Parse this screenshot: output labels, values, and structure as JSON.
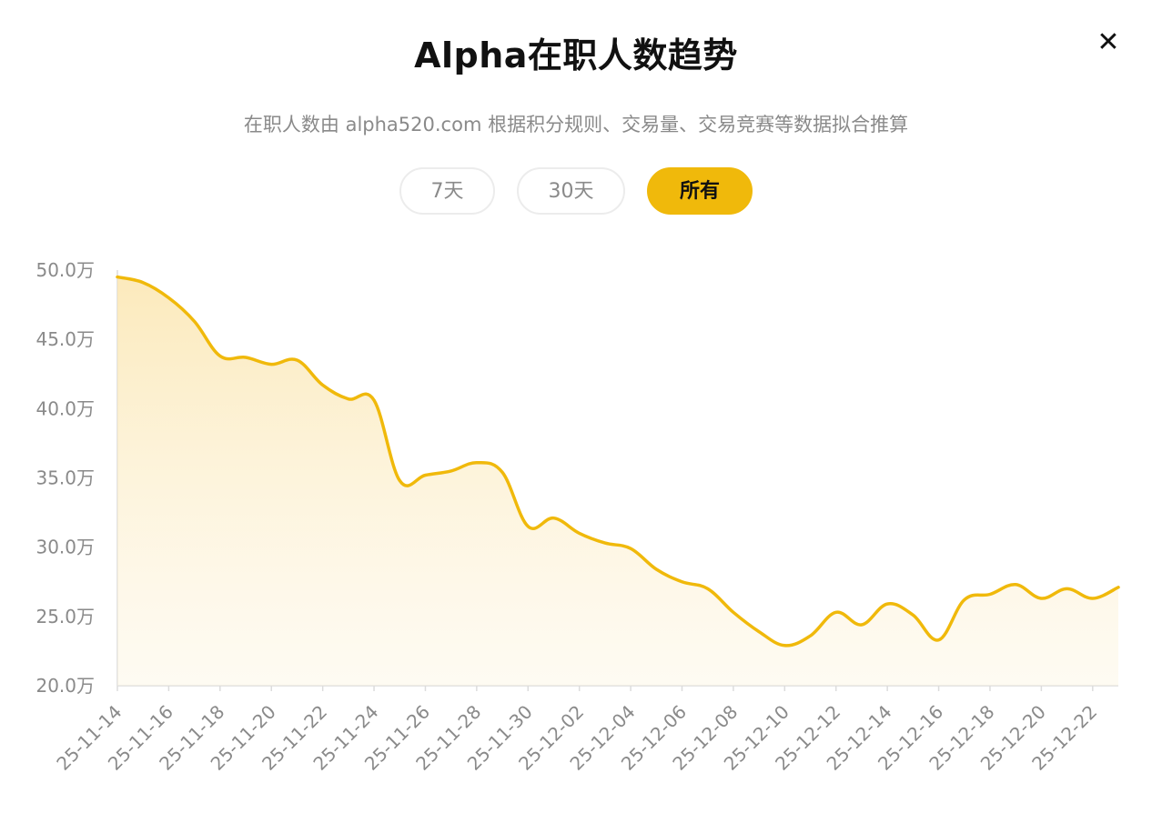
{
  "header": {
    "title": "Alpha在职人数趋势",
    "close_label": "✕",
    "subtitle": "在职人数由 alpha520.com 根据积分规则、交易量、交易竞赛等数据拟合推算"
  },
  "range_tabs": [
    {
      "label": "7天",
      "active": false
    },
    {
      "label": "30天",
      "active": false
    },
    {
      "label": "所有",
      "active": true
    }
  ],
  "colors": {
    "accent": "#f0b90b",
    "line": "#f0b90b",
    "area_top": "#fbe6b0",
    "axis_text": "#8a8a8a"
  },
  "chart_data": {
    "type": "area",
    "title": "",
    "xlabel": "",
    "ylabel": "",
    "ylim": [
      200000,
      500000
    ],
    "y_ticks": [
      {
        "value": 500000,
        "label": "50.0万"
      },
      {
        "value": 450000,
        "label": "45.0万"
      },
      {
        "value": 400000,
        "label": "40.0万"
      },
      {
        "value": 350000,
        "label": "35.0万"
      },
      {
        "value": 300000,
        "label": "30.0万"
      },
      {
        "value": 250000,
        "label": "25.0万"
      },
      {
        "value": 200000,
        "label": "20.0万"
      }
    ],
    "x_tick_labels": [
      "25-11-14",
      "25-11-16",
      "25-11-18",
      "25-11-20",
      "25-11-22",
      "25-11-24",
      "25-11-26",
      "25-11-28",
      "25-11-30",
      "25-12-02",
      "25-12-04",
      "25-12-06",
      "25-12-08",
      "25-12-10",
      "25-12-12",
      "25-12-14",
      "25-12-16",
      "25-12-18",
      "25-12-20",
      "25-12-22"
    ],
    "series": [
      {
        "dates": [
          "2025-11-14",
          "2025-11-15",
          "2025-11-16",
          "2025-11-17",
          "2025-11-18",
          "2025-11-19",
          "2025-11-20",
          "2025-11-21",
          "2025-11-22",
          "2025-11-23",
          "2025-11-24",
          "2025-11-25",
          "2025-11-26",
          "2025-11-27",
          "2025-11-28",
          "2025-11-29",
          "2025-11-30",
          "2025-12-01",
          "2025-12-02",
          "2025-12-03",
          "2025-12-04",
          "2025-12-05",
          "2025-12-06",
          "2025-12-07",
          "2025-12-08",
          "2025-12-09",
          "2025-12-10",
          "2025-12-11",
          "2025-12-12",
          "2025-12-13",
          "2025-12-14",
          "2025-12-15",
          "2025-12-16",
          "2025-12-17",
          "2025-12-18",
          "2025-12-19",
          "2025-12-20",
          "2025-12-21",
          "2025-12-22",
          "2025-12-23"
        ],
        "values": [
          495000,
          491000,
          480000,
          463000,
          438000,
          437000,
          432000,
          435000,
          417000,
          407000,
          406000,
          348000,
          352000,
          355000,
          361000,
          354000,
          315000,
          321000,
          310000,
          303000,
          299000,
          284000,
          275000,
          270000,
          253000,
          239000,
          229000,
          236000,
          253000,
          244000,
          259000,
          251000,
          233000,
          262000,
          266000,
          273000,
          263000,
          270000,
          263000,
          271000
        ]
      }
    ]
  }
}
